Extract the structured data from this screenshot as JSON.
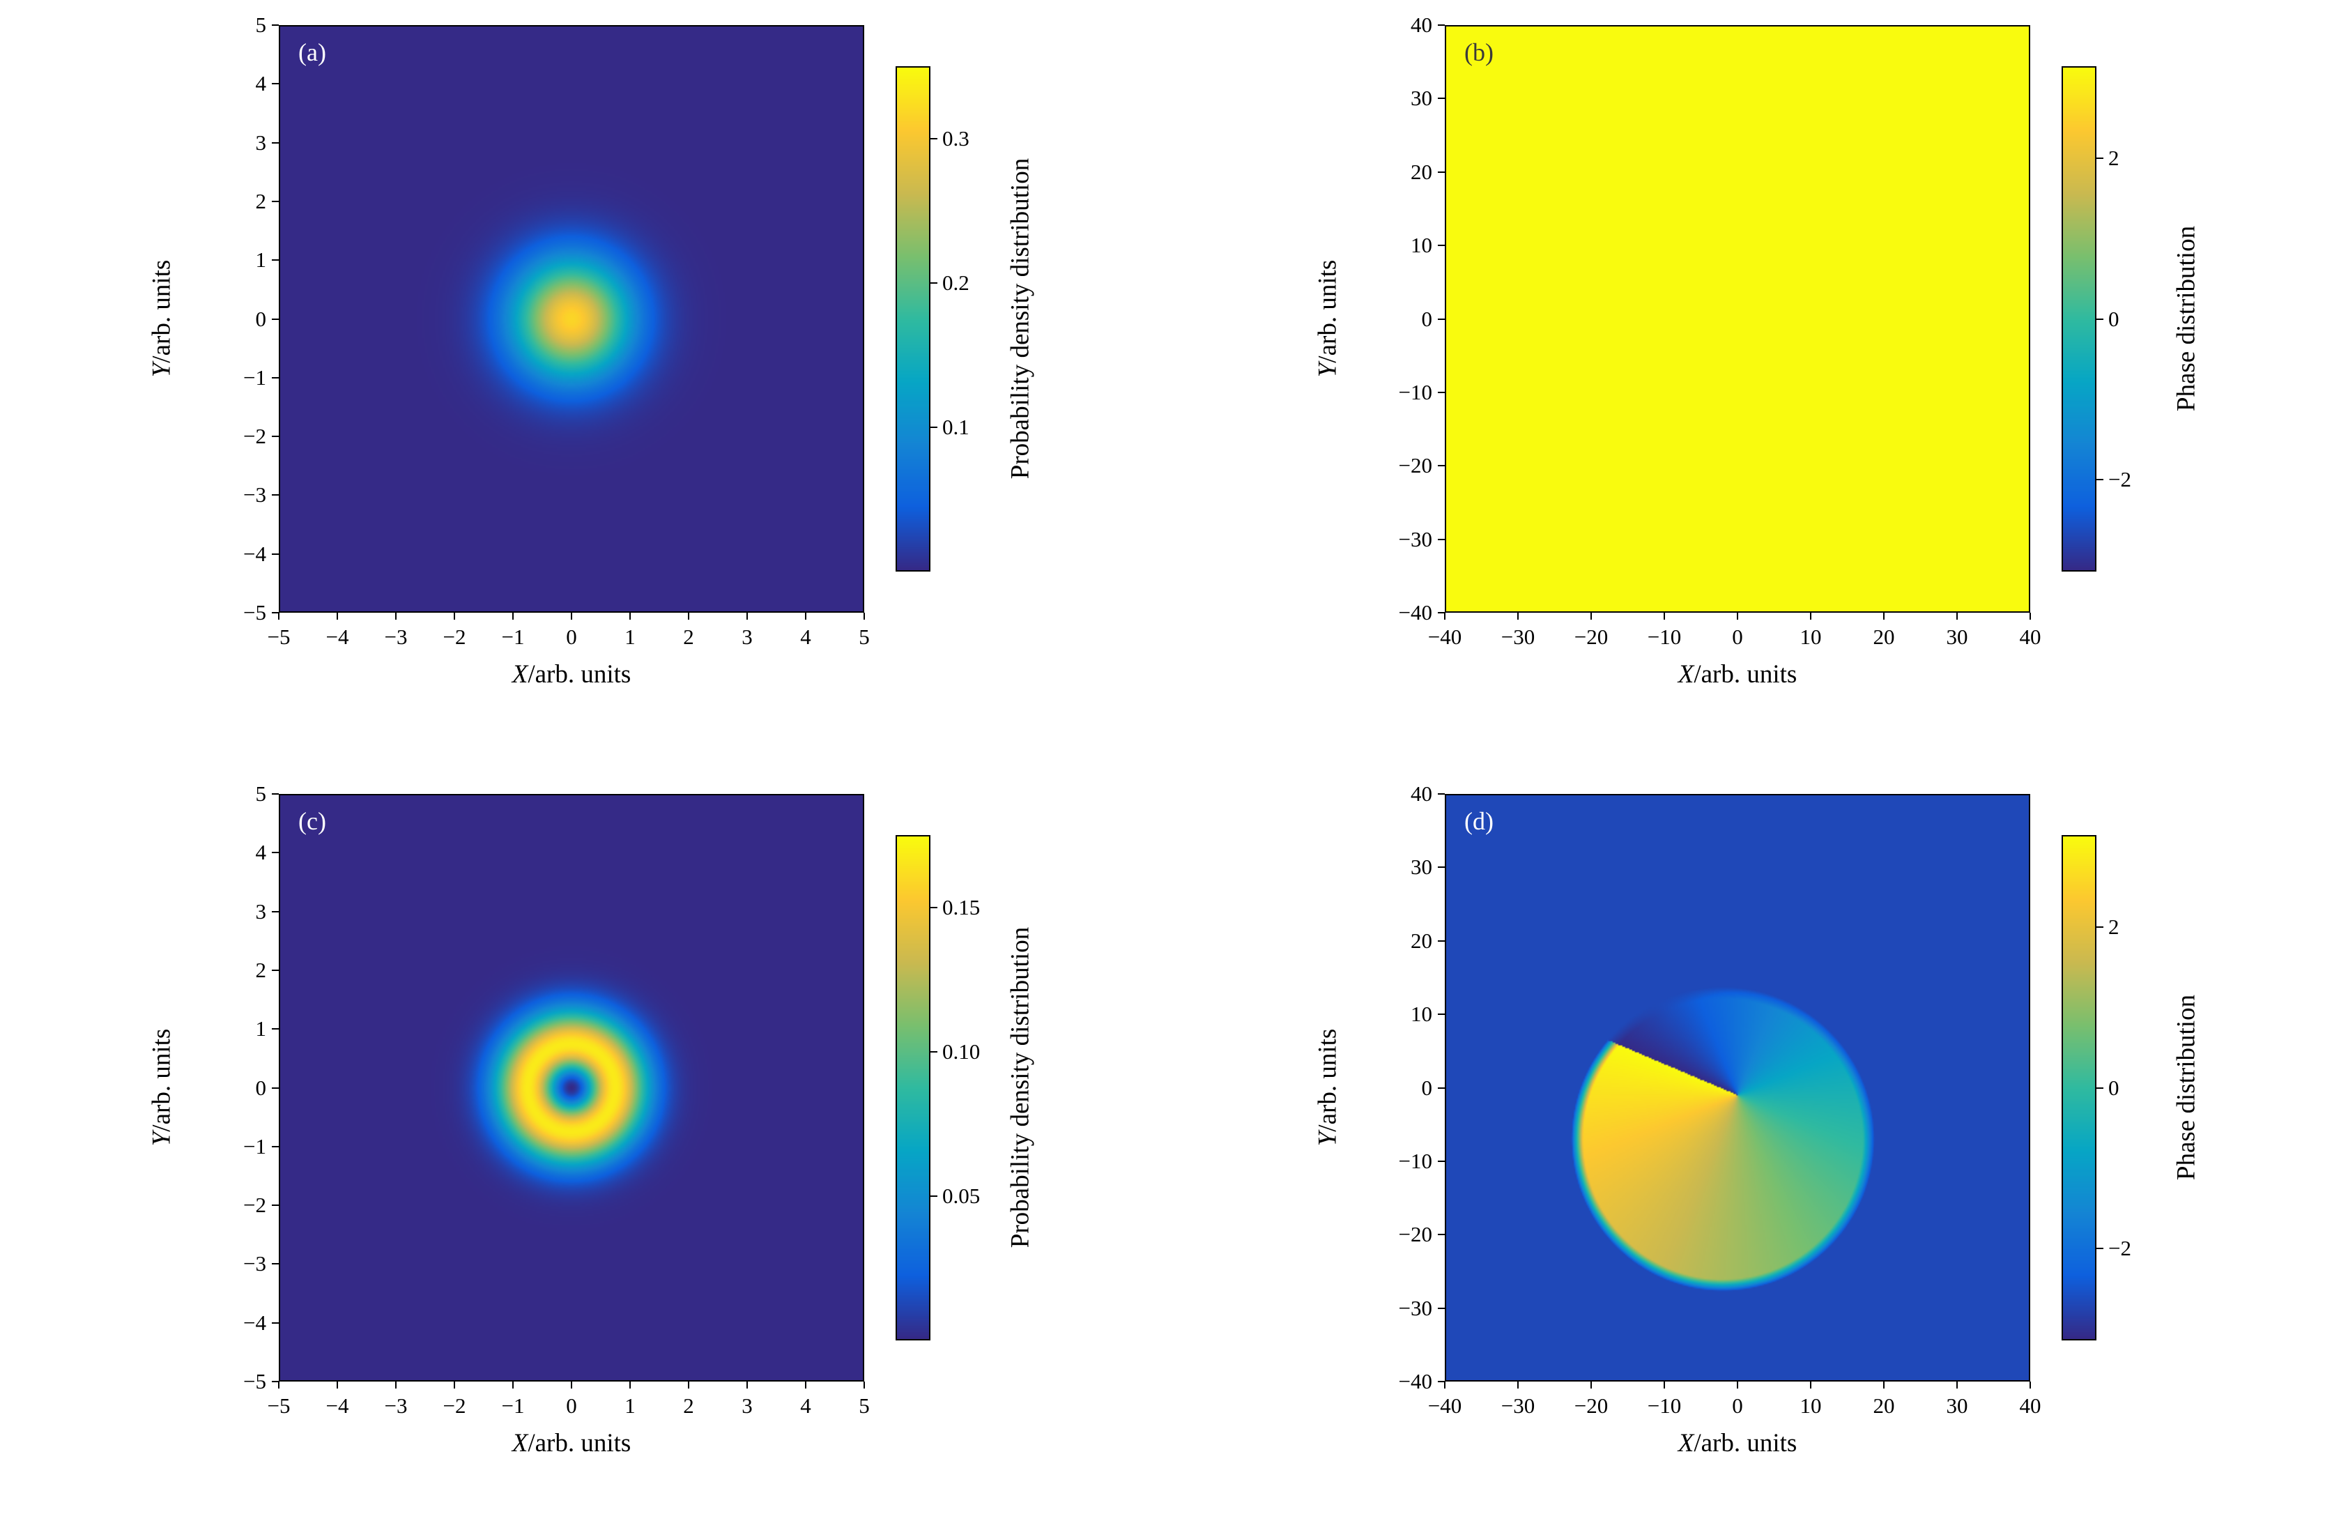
{
  "figure_background": "#ffffff",
  "colormap": {
    "name": "parula-like",
    "stops": [
      [
        0.0,
        "#352a87"
      ],
      [
        0.125,
        "#0e60de"
      ],
      [
        0.25,
        "#1485d4"
      ],
      [
        0.375,
        "#07a6c5"
      ],
      [
        0.5,
        "#30baa0"
      ],
      [
        0.625,
        "#7abf6e"
      ],
      [
        0.75,
        "#cab950"
      ],
      [
        0.875,
        "#fcc830"
      ],
      [
        1.0,
        "#f9fb0e"
      ]
    ]
  },
  "chart_data": [
    {
      "id": "a",
      "type": "heatmap",
      "panel_label": "(a)",
      "panel_label_color": "#ffffff",
      "xlabel_var": "X",
      "xlabel_rest": "/arb. units",
      "ylabel_var": "Y",
      "ylabel_rest": "/arb. units",
      "xlim": [
        -5,
        5
      ],
      "ylim": [
        -5,
        5
      ],
      "xticks": [
        -5,
        -4,
        -3,
        -2,
        -1,
        0,
        1,
        2,
        3,
        4,
        5
      ],
      "yticks": [
        -5,
        -4,
        -3,
        -2,
        -1,
        0,
        1,
        2,
        3,
        4,
        5
      ],
      "tick_decimals": 0,
      "colorbar": {
        "label": "Probability density distribution",
        "vmin": 0,
        "vmax": 0.35,
        "ticks": [
          0.1,
          0.2,
          0.3
        ],
        "tick_decimals": 1
      },
      "field": {
        "model": "gaussian",
        "center": [
          0,
          0
        ],
        "sigma": 1.0,
        "peak": 0.318
      }
    },
    {
      "id": "b",
      "type": "heatmap",
      "panel_label": "(b)",
      "panel_label_color": "#3a3a3a",
      "xlabel_var": "X",
      "xlabel_rest": "/arb. units",
      "ylabel_var": "Y",
      "ylabel_rest": "/arb. units",
      "xlim": [
        -40,
        40
      ],
      "ylim": [
        -40,
        40
      ],
      "xticks": [
        -40,
        -30,
        -20,
        -10,
        0,
        10,
        20,
        30,
        40
      ],
      "yticks": [
        -40,
        -30,
        -20,
        -10,
        0,
        10,
        20,
        30,
        40
      ],
      "tick_decimals": 0,
      "colorbar": {
        "label": "Phase distribution",
        "vmin": -3.1416,
        "vmax": 3.1416,
        "ticks": [
          -2,
          0,
          2
        ],
        "tick_decimals": 0
      },
      "field": {
        "model": "constant",
        "value": 3.1416
      }
    },
    {
      "id": "c",
      "type": "heatmap",
      "panel_label": "(c)",
      "panel_label_color": "#ffffff",
      "xlabel_var": "X",
      "xlabel_rest": "/arb. units",
      "ylabel_var": "Y",
      "ylabel_rest": "/arb. units",
      "xlim": [
        -5,
        5
      ],
      "ylim": [
        -5,
        5
      ],
      "xticks": [
        -5,
        -4,
        -3,
        -2,
        -1,
        0,
        1,
        2,
        3,
        4,
        5
      ],
      "yticks": [
        -5,
        -4,
        -3,
        -2,
        -1,
        0,
        1,
        2,
        3,
        4,
        5
      ],
      "tick_decimals": 0,
      "colorbar": {
        "label": "Probability density distribution",
        "vmin": 0,
        "vmax": 0.175,
        "ticks": [
          0.05,
          0.1,
          0.15
        ],
        "tick_decimals": 2
      },
      "field": {
        "model": "ring",
        "center": [
          0,
          0
        ],
        "radius": 0.75,
        "peak": 0.168
      }
    },
    {
      "id": "d",
      "type": "heatmap",
      "panel_label": "(d)",
      "panel_label_color": "#ffffff",
      "xlabel_var": "X",
      "xlabel_rest": "/arb. units",
      "ylabel_var": "Y",
      "ylabel_rest": "/arb. units",
      "xlim": [
        -40,
        40
      ],
      "ylim": [
        -40,
        40
      ],
      "xticks": [
        -40,
        -30,
        -20,
        -10,
        0,
        10,
        20,
        30,
        40
      ],
      "yticks": [
        -40,
        -30,
        -20,
        -10,
        0,
        10,
        20,
        30,
        40
      ],
      "tick_decimals": 0,
      "colorbar": {
        "label": "Phase distribution",
        "vmin": -3.1416,
        "vmax": 3.1416,
        "ticks": [
          -2,
          0,
          2
        ],
        "tick_decimals": 0
      },
      "field": {
        "model": "vortex",
        "disk_center": [
          -2,
          -7
        ],
        "disk_radius": 20,
        "edge": 0.8,
        "vortex_center": [
          0,
          -1
        ],
        "phase_offset": -0.4,
        "chirality": -1,
        "background_value": -2.7
      }
    }
  ]
}
